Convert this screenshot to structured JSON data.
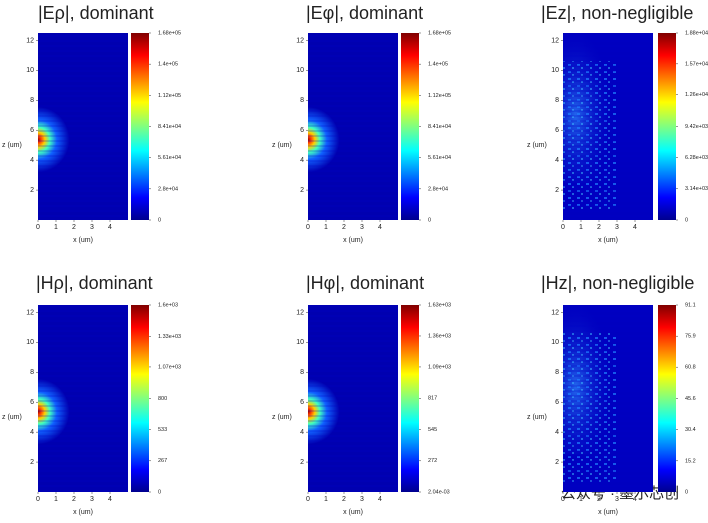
{
  "chart_data": [
    {
      "type": "heatmap",
      "title": "|Eρ|, dominant",
      "xlabel": "x (um)",
      "ylabel": "z (um)",
      "xlim": [
        0,
        5
      ],
      "ylim": [
        0,
        12.5
      ],
      "xticks": [
        0,
        1,
        2,
        3,
        4
      ],
      "yticks": [
        2,
        4,
        6,
        8,
        10,
        12
      ],
      "clim": [
        0,
        168000
      ],
      "cticks": [
        0,
        {
          "value": 28000,
          "label": "2.8e+04"
        },
        {
          "value": 56100,
          "label": "5.61e+04"
        },
        {
          "value": 84100,
          "label": "8.41e+04"
        },
        {
          "value": 112000,
          "label": "1.12e+05"
        },
        {
          "value": 140000,
          "label": "1.4e+05"
        },
        {
          "value": 168000,
          "label": "1.68e+05"
        }
      ]
    },
    {
      "type": "heatmap",
      "title": "|Eφ|, dominant",
      "xlabel": "x (um)",
      "ylabel": "z (um)",
      "xlim": [
        0,
        5
      ],
      "ylim": [
        0,
        12.5
      ],
      "xticks": [
        0,
        1,
        2,
        3,
        4
      ],
      "yticks": [
        2,
        4,
        6,
        8,
        10,
        12
      ],
      "clim": [
        0,
        168000
      ],
      "cticks": [
        0,
        {
          "value": 28000,
          "label": "2.8e+04"
        },
        {
          "value": 56100,
          "label": "5.61e+04"
        },
        {
          "value": 84100,
          "label": "8.41e+04"
        },
        {
          "value": 112000,
          "label": "1.12e+05"
        },
        {
          "value": 140000,
          "label": "1.4e+05"
        },
        {
          "value": 168000,
          "label": "1.68e+05"
        }
      ]
    },
    {
      "type": "heatmap",
      "title": "|Ez|, non-negligible",
      "xlabel": "x (um)",
      "ylabel": "z (um)",
      "xlim": [
        0,
        5
      ],
      "ylim": [
        0,
        12.5
      ],
      "xticks": [
        0,
        1,
        2,
        3,
        4
      ],
      "yticks": [
        2,
        4,
        6,
        8,
        10,
        12
      ],
      "clim": [
        0,
        18800
      ],
      "cticks": [
        0,
        {
          "value": 3140,
          "label": "3.14e+03"
        },
        {
          "value": 6280,
          "label": "6.28e+03"
        },
        {
          "value": 9420,
          "label": "9.42e+03"
        },
        {
          "value": 12600,
          "label": "1.26e+04"
        },
        {
          "value": 15700,
          "label": "1.57e+04"
        },
        {
          "value": 18800,
          "label": "1.88e+04"
        }
      ]
    },
    {
      "type": "heatmap",
      "title": "|Hρ|, dominant",
      "xlabel": "x (um)",
      "ylabel": "z (um)",
      "xlim": [
        0,
        5
      ],
      "ylim": [
        0,
        12.5
      ],
      "xticks": [
        0,
        1,
        2,
        3,
        4
      ],
      "yticks": [
        2,
        4,
        6,
        8,
        10,
        12
      ],
      "clim": [
        0,
        1600
      ],
      "cticks": [
        0,
        267,
        533,
        800,
        {
          "value": 1070,
          "label": "1.07e+03"
        },
        {
          "value": 1330,
          "label": "1.33e+03"
        },
        {
          "value": 1600,
          "label": "1.6e+03"
        }
      ]
    },
    {
      "type": "heatmap",
      "title": "|Hφ|, dominant",
      "xlabel": "x (um)",
      "ylabel": "z (um)",
      "xlim": [
        0,
        5
      ],
      "ylim": [
        0,
        12.5
      ],
      "xticks": [
        0,
        1,
        2,
        3,
        4
      ],
      "yticks": [
        2,
        4,
        6,
        8,
        10,
        12
      ],
      "clim": [
        0.00204,
        1630
      ],
      "cticks": [
        {
          "value": 0.00204,
          "label": "2.04e-03"
        },
        272,
        545,
        817,
        {
          "value": 1090,
          "label": "1.09e+03"
        },
        {
          "value": 1360,
          "label": "1.36e+03"
        },
        {
          "value": 1630,
          "label": "1.63e+03"
        }
      ]
    },
    {
      "type": "heatmap",
      "title": "|Hz|, non-negligible",
      "xlabel": "x (um)",
      "ylabel": "z (um)",
      "xlim": [
        0,
        5
      ],
      "ylim": [
        0,
        12.5
      ],
      "xticks": [
        0,
        1,
        2,
        3,
        4
      ],
      "yticks": [
        2,
        4,
        6,
        8,
        10,
        12
      ],
      "clim": [
        0,
        91.1
      ],
      "cticks": [
        0,
        15.2,
        30.4,
        45.6,
        60.8,
        75.9,
        91.1
      ]
    }
  ],
  "watermark": "公众号 · 墨尔芯创"
}
